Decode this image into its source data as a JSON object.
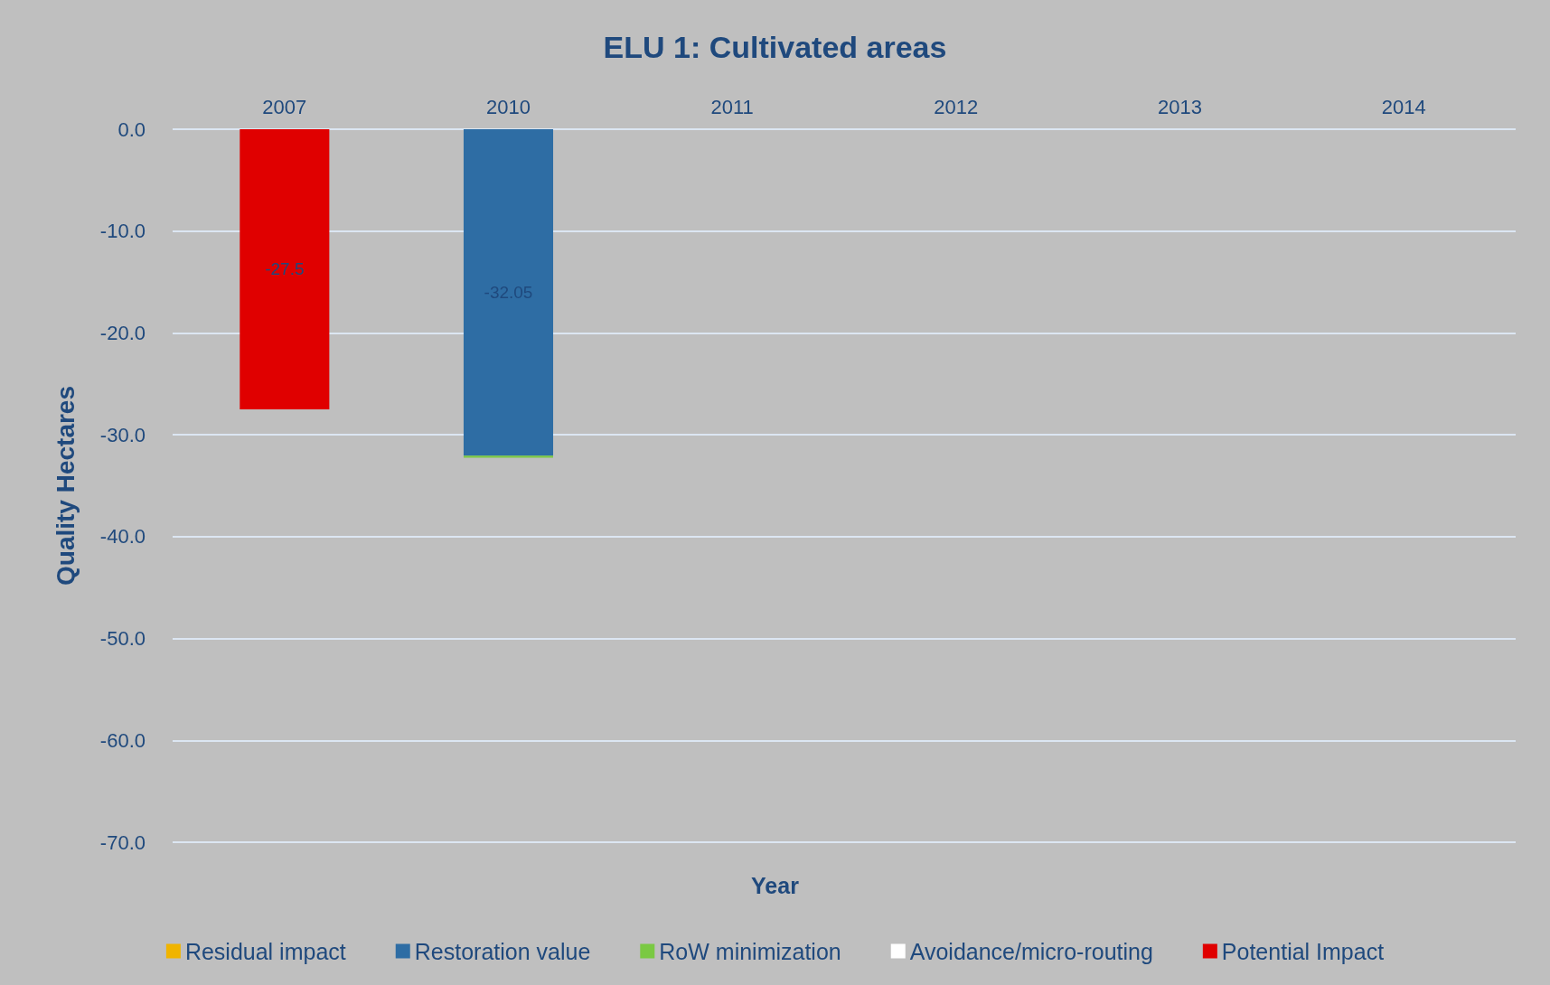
{
  "chart_data": {
    "type": "bar",
    "title": "ELU 1: Cultivated areas",
    "xlabel": "Year",
    "ylabel": "Quality Hectares",
    "categories": [
      "2007",
      "2010",
      "2011",
      "2012",
      "2013",
      "2014"
    ],
    "stacked": true,
    "series": [
      {
        "name": "Residual impact",
        "color": "#f0b400",
        "values": [
          null,
          null,
          null,
          null,
          null,
          null
        ]
      },
      {
        "name": "Restoration value",
        "color": "#2e6da4",
        "values": [
          null,
          -32.05,
          null,
          null,
          null,
          null
        ],
        "value_labels": [
          null,
          "-32.05",
          null,
          null,
          null,
          null
        ]
      },
      {
        "name": "RoW minimization",
        "color": "#7ac943",
        "values": [
          null,
          -0.2,
          null,
          null,
          null,
          null
        ]
      },
      {
        "name": "Avoidance/micro-routing",
        "color": "#ffffff",
        "values": [
          null,
          null,
          null,
          null,
          null,
          null
        ]
      },
      {
        "name": "Potential Impact",
        "color": "#e00000",
        "values": [
          -27.5,
          null,
          null,
          null,
          null,
          null
        ],
        "value_labels": [
          "-27.5",
          null,
          null,
          null,
          null,
          null
        ]
      }
    ],
    "ylim": [
      -70,
      0
    ],
    "yticks": [
      {
        "value": 0,
        "label": "0.0"
      },
      {
        "value": -10,
        "label": "-10.0"
      },
      {
        "value": -20,
        "label": "-20.0"
      },
      {
        "value": -30,
        "label": "-30.0"
      },
      {
        "value": -40,
        "label": "-40.0"
      },
      {
        "value": -50,
        "label": "-50.0"
      },
      {
        "value": -60,
        "label": "-60.0"
      },
      {
        "value": -70,
        "label": "-70.0"
      }
    ],
    "grid": "y",
    "legend": "bottom"
  }
}
